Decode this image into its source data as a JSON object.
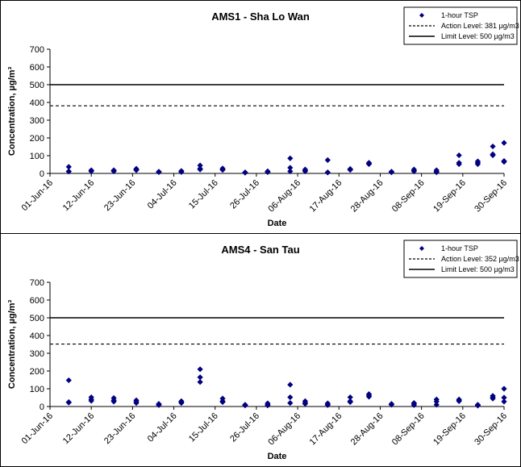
{
  "chart_data": [
    {
      "type": "scatter",
      "title": "AMS1 - Sha Lo Wan",
      "xlabel": "Date",
      "ylabel": "Concentration, µg/m³",
      "ylim": [
        0,
        700
      ],
      "yticks": [
        "0",
        "100",
        "200",
        "300",
        "400",
        "500",
        "600",
        "700"
      ],
      "xlim": [
        "2016-06-01",
        "2016-09-30"
      ],
      "xticks": [
        {
          "date": "2016-06-01",
          "label": "01-Jun-16"
        },
        {
          "date": "2016-06-12",
          "label": "12-Jun-16"
        },
        {
          "date": "2016-06-23",
          "label": "23-Jun-16"
        },
        {
          "date": "2016-07-04",
          "label": "04-Jul-16"
        },
        {
          "date": "2016-07-15",
          "label": "15-Jul-16"
        },
        {
          "date": "2016-07-26",
          "label": "26-Jul-16"
        },
        {
          "date": "2016-08-06",
          "label": "06-Aug-16"
        },
        {
          "date": "2016-08-17",
          "label": "17-Aug-16"
        },
        {
          "date": "2016-08-28",
          "label": "28-Aug-16"
        },
        {
          "date": "2016-09-08",
          "label": "08-Sep-16"
        },
        {
          "date": "2016-09-19",
          "label": "19-Sep-16"
        },
        {
          "date": "2016-09-30",
          "label": "30-Sep-16"
        }
      ],
      "grid": false,
      "legend_position": "top-right",
      "legend": [
        "1-hour TSP",
        "Action Level: 381 µg/m3",
        "Limit Level: 500 µg/m3"
      ],
      "series": [
        {
          "name": "1-hour TSP",
          "color": "#000080",
          "marker": "diamond",
          "points": [
            [
              "2016-06-06",
              37
            ],
            [
              "2016-06-06",
              12
            ],
            [
              "2016-06-06",
              10
            ],
            [
              "2016-06-12",
              18
            ],
            [
              "2016-06-12",
              14
            ],
            [
              "2016-06-12",
              12
            ],
            [
              "2016-06-18",
              18
            ],
            [
              "2016-06-18",
              14
            ],
            [
              "2016-06-18",
              12
            ],
            [
              "2016-06-24",
              26
            ],
            [
              "2016-06-24",
              22
            ],
            [
              "2016-06-24",
              18
            ],
            [
              "2016-06-30",
              10
            ],
            [
              "2016-06-30",
              8
            ],
            [
              "2016-06-30",
              7
            ],
            [
              "2016-07-06",
              14
            ],
            [
              "2016-07-06",
              10
            ],
            [
              "2016-07-06",
              8
            ],
            [
              "2016-07-11",
              45
            ],
            [
              "2016-07-11",
              27
            ],
            [
              "2016-07-11",
              22
            ],
            [
              "2016-07-17",
              28
            ],
            [
              "2016-07-17",
              22
            ],
            [
              "2016-07-17",
              20
            ],
            [
              "2016-07-23",
              6
            ],
            [
              "2016-07-23",
              5
            ],
            [
              "2016-07-23",
              4
            ],
            [
              "2016-07-29",
              12
            ],
            [
              "2016-07-29",
              9
            ],
            [
              "2016-07-29",
              7
            ],
            [
              "2016-08-04",
              85
            ],
            [
              "2016-08-04",
              32
            ],
            [
              "2016-08-04",
              12
            ],
            [
              "2016-08-08",
              22
            ],
            [
              "2016-08-08",
              15
            ],
            [
              "2016-08-08",
              12
            ],
            [
              "2016-08-14",
              75
            ],
            [
              "2016-08-14",
              6
            ],
            [
              "2016-08-14",
              5
            ],
            [
              "2016-08-20",
              25
            ],
            [
              "2016-08-20",
              22
            ],
            [
              "2016-08-20",
              20
            ],
            [
              "2016-08-25",
              60
            ],
            [
              "2016-08-25",
              55
            ],
            [
              "2016-08-25",
              52
            ],
            [
              "2016-08-31",
              10
            ],
            [
              "2016-08-31",
              8
            ],
            [
              "2016-08-31",
              6
            ],
            [
              "2016-09-06",
              22
            ],
            [
              "2016-09-06",
              15
            ],
            [
              "2016-09-06",
              12
            ],
            [
              "2016-09-12",
              18
            ],
            [
              "2016-09-12",
              10
            ],
            [
              "2016-09-12",
              6
            ],
            [
              "2016-09-18",
              102
            ],
            [
              "2016-09-18",
              60
            ],
            [
              "2016-09-18",
              52
            ],
            [
              "2016-09-23",
              68
            ],
            [
              "2016-09-23",
              60
            ],
            [
              "2016-09-23",
              52
            ],
            [
              "2016-09-27",
              152
            ],
            [
              "2016-09-27",
              108
            ],
            [
              "2016-09-27",
              102
            ],
            [
              "2016-09-30",
              172
            ],
            [
              "2016-09-30",
              70
            ],
            [
              "2016-09-30",
              65
            ]
          ]
        },
        {
          "name": "Action Level: 381 µg/m3",
          "style": "dashed",
          "value": 381
        },
        {
          "name": "Limit Level: 500 µg/m3",
          "style": "solid",
          "value": 500
        }
      ]
    },
    {
      "type": "scatter",
      "title": "AMS4 - San Tau",
      "xlabel": "Date",
      "ylabel": "Concentration, µg/m³",
      "ylim": [
        0,
        700
      ],
      "yticks": [
        "0",
        "100",
        "200",
        "300",
        "400",
        "500",
        "600",
        "700"
      ],
      "xlim": [
        "2016-06-01",
        "2016-09-30"
      ],
      "xticks": [
        {
          "date": "2016-06-01",
          "label": "01-Jun-16"
        },
        {
          "date": "2016-06-12",
          "label": "12-Jun-16"
        },
        {
          "date": "2016-06-23",
          "label": "23-Jun-16"
        },
        {
          "date": "2016-07-04",
          "label": "04-Jul-16"
        },
        {
          "date": "2016-07-15",
          "label": "15-Jul-16"
        },
        {
          "date": "2016-07-26",
          "label": "26-Jul-16"
        },
        {
          "date": "2016-08-06",
          "label": "06-Aug-16"
        },
        {
          "date": "2016-08-17",
          "label": "17-Aug-16"
        },
        {
          "date": "2016-08-28",
          "label": "28-Aug-16"
        },
        {
          "date": "2016-09-08",
          "label": "08-Sep-16"
        },
        {
          "date": "2016-09-19",
          "label": "19-Sep-16"
        },
        {
          "date": "2016-09-30",
          "label": "30-Sep-16"
        }
      ],
      "grid": false,
      "legend_position": "top-right",
      "legend": [
        "1-hour TSP",
        "Action Level: 352 µg/m3",
        "Limit Level: 500 µg/m3"
      ],
      "series": [
        {
          "name": "1-hour TSP",
          "color": "#000080",
          "marker": "diamond",
          "points": [
            [
              "2016-06-06",
              148
            ],
            [
              "2016-06-06",
              25
            ],
            [
              "2016-06-06",
              22
            ],
            [
              "2016-06-12",
              52
            ],
            [
              "2016-06-12",
              40
            ],
            [
              "2016-06-12",
              32
            ],
            [
              "2016-06-18",
              48
            ],
            [
              "2016-06-18",
              35
            ],
            [
              "2016-06-18",
              28
            ],
            [
              "2016-06-24",
              35
            ],
            [
              "2016-06-24",
              28
            ],
            [
              "2016-06-24",
              20
            ],
            [
              "2016-06-30",
              15
            ],
            [
              "2016-06-30",
              10
            ],
            [
              "2016-06-30",
              8
            ],
            [
              "2016-07-06",
              30
            ],
            [
              "2016-07-06",
              25
            ],
            [
              "2016-07-06",
              20
            ],
            [
              "2016-07-11",
              210
            ],
            [
              "2016-07-11",
              165
            ],
            [
              "2016-07-11",
              138
            ],
            [
              "2016-07-17",
              45
            ],
            [
              "2016-07-17",
              30
            ],
            [
              "2016-07-17",
              25
            ],
            [
              "2016-07-23",
              10
            ],
            [
              "2016-07-23",
              8
            ],
            [
              "2016-07-23",
              6
            ],
            [
              "2016-07-29",
              18
            ],
            [
              "2016-07-29",
              10
            ],
            [
              "2016-07-29",
              6
            ],
            [
              "2016-08-04",
              123
            ],
            [
              "2016-08-04",
              52
            ],
            [
              "2016-08-04",
              20
            ],
            [
              "2016-08-08",
              30
            ],
            [
              "2016-08-08",
              20
            ],
            [
              "2016-08-08",
              15
            ],
            [
              "2016-08-14",
              18
            ],
            [
              "2016-08-14",
              12
            ],
            [
              "2016-08-14",
              8
            ],
            [
              "2016-08-20",
              52
            ],
            [
              "2016-08-20",
              30
            ],
            [
              "2016-08-20",
              25
            ],
            [
              "2016-08-25",
              70
            ],
            [
              "2016-08-25",
              62
            ],
            [
              "2016-08-25",
              55
            ],
            [
              "2016-08-31",
              15
            ],
            [
              "2016-08-31",
              12
            ],
            [
              "2016-08-31",
              10
            ],
            [
              "2016-09-06",
              20
            ],
            [
              "2016-09-06",
              15
            ],
            [
              "2016-09-06",
              8
            ],
            [
              "2016-09-12",
              40
            ],
            [
              "2016-09-12",
              28
            ],
            [
              "2016-09-12",
              10
            ],
            [
              "2016-09-18",
              40
            ],
            [
              "2016-09-18",
              35
            ],
            [
              "2016-09-18",
              30
            ],
            [
              "2016-09-23",
              10
            ],
            [
              "2016-09-23",
              8
            ],
            [
              "2016-09-23",
              5
            ],
            [
              "2016-09-27",
              60
            ],
            [
              "2016-09-27",
              52
            ],
            [
              "2016-09-27",
              45
            ],
            [
              "2016-09-30",
              100
            ],
            [
              "2016-09-30",
              50
            ],
            [
              "2016-09-30",
              28
            ]
          ]
        },
        {
          "name": "Action Level: 352 µg/m3",
          "style": "dashed",
          "value": 352
        },
        {
          "name": "Limit Level: 500 µg/m3",
          "style": "solid",
          "value": 500
        }
      ]
    }
  ]
}
